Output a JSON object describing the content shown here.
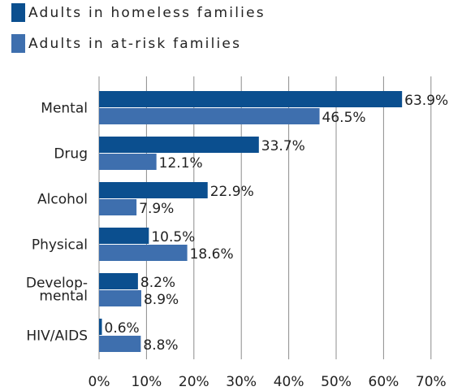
{
  "legend": [
    {
      "label": "Adults in homeless families",
      "color": "#0b4f8f"
    },
    {
      "label": "Adults in at-risk families",
      "color": "#3e6fae"
    }
  ],
  "chart_data": {
    "type": "bar",
    "orientation": "horizontal",
    "categories": [
      [
        "Mental"
      ],
      [
        "Drug"
      ],
      [
        "Alcohol"
      ],
      [
        "Physical"
      ],
      [
        "Develop-",
        "mental"
      ],
      [
        "HIV/AIDS"
      ]
    ],
    "series": [
      {
        "name": "Adults in homeless families",
        "color": "#0b4f8f",
        "values": [
          63.9,
          33.7,
          22.9,
          10.5,
          8.2,
          0.6
        ],
        "labels": [
          "63.9%",
          "33.7%",
          "22.9%",
          "10.5%",
          "8.2%",
          "0.6%"
        ]
      },
      {
        "name": "Adults in at-risk families",
        "color": "#3e6fae",
        "values": [
          46.5,
          12.1,
          7.9,
          18.6,
          8.9,
          8.8
        ],
        "labels": [
          "46.5%",
          "12.1%",
          "7.9%",
          "18.6%",
          "8.9%",
          "8.8%"
        ]
      }
    ],
    "xlim": [
      0,
      70
    ],
    "xticks": [
      0,
      10,
      20,
      30,
      40,
      50,
      60,
      70
    ],
    "xtick_labels": [
      "0%",
      "10%",
      "20%",
      "30%",
      "40%",
      "50%",
      "60%",
      "70%"
    ],
    "grid": "vertical",
    "legend_position": "top-left"
  }
}
